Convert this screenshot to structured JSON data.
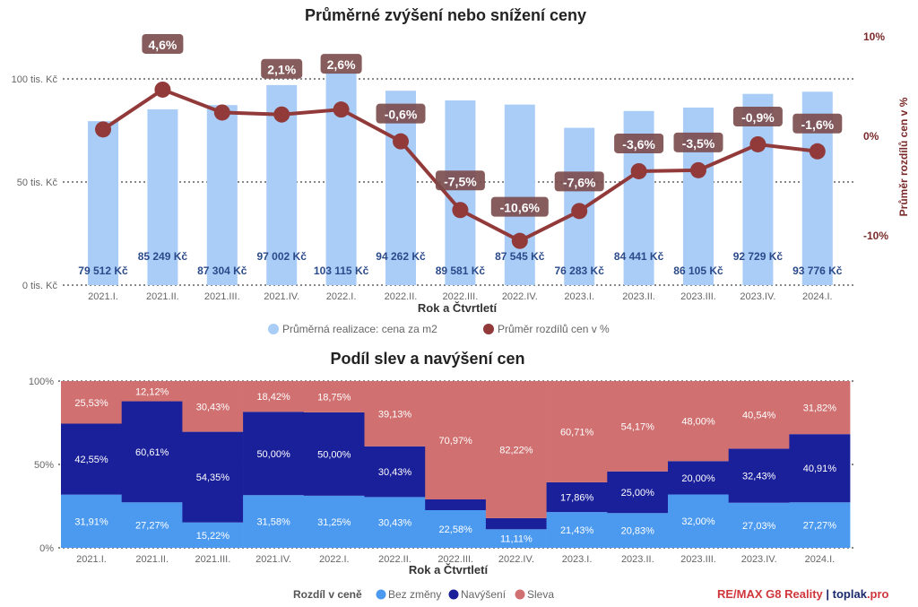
{
  "chart_data": [
    {
      "type": "bar+line",
      "title": "Průměrné zvýšení nebo snížení ceny",
      "xlabel": "Rok a Čtvrtletí",
      "ylabel": "",
      "y2label": "Průměr rozdílů cen v %",
      "categories": [
        "2021.I.",
        "2021.II.",
        "2021.III.",
        "2021.IV.",
        "2022.I.",
        "2022.II.",
        "2022.III.",
        "2022.IV.",
        "2023.I.",
        "2023.II.",
        "2023.III.",
        "2023.IV.",
        "2024.I."
      ],
      "yticks": [
        "0 tis. Kč",
        "50 tis. Kč",
        "100 tis. Kč"
      ],
      "y2ticks": [
        "-10%",
        "0%",
        "10%"
      ],
      "grid": true,
      "legend_position": "bottom",
      "series": [
        {
          "name": "Průměrná realizace: cena za m2",
          "type": "bar",
          "color": "#a9cdf7",
          "values": [
            79512,
            85249,
            87304,
            97002,
            103115,
            94262,
            89581,
            87545,
            76283,
            84441,
            86105,
            92729,
            93776
          ],
          "labels": [
            "79 512 Kč",
            "85 249 Kč",
            "87 304 Kč",
            "97 002 Kč",
            "103 115 Kč",
            "94 262 Kč",
            "89 581 Kč",
            "87 545 Kč",
            "76 283 Kč",
            "84 441 Kč",
            "86 105 Kč",
            "92 729 Kč",
            "93 776 Kč"
          ]
        },
        {
          "name": "Průměr rozdílů cen v %",
          "type": "line",
          "axis": "right",
          "color": "#923a3a",
          "values": [
            0.6,
            4.6,
            2.3,
            2.1,
            2.6,
            -0.6,
            -7.5,
            -10.6,
            -7.6,
            -3.6,
            -3.5,
            -0.9,
            -1.6
          ],
          "labels": [
            null,
            "4,6%",
            null,
            "2,1%",
            "2,6%",
            "-0,6%",
            "-7,5%",
            "-10,6%",
            "-7,6%",
            "-3,6%",
            "-3,5%",
            "-0,9%",
            "-1,6%"
          ]
        }
      ]
    },
    {
      "type": "stacked-bar-100",
      "title": "Podíl slev a navýšení cen",
      "xlabel": "Rok a Čtvrtletí",
      "legend_title": "Rozdíl v ceně",
      "legend_position": "bottom",
      "yticks": [
        "0%",
        "50%",
        "100%"
      ],
      "categories": [
        "2021.I.",
        "2021.II.",
        "2021.III.",
        "2021.IV.",
        "2022.I.",
        "2022.II.",
        "2022.III.",
        "2022.IV.",
        "2023.I.",
        "2023.II.",
        "2023.III.",
        "2023.IV.",
        "2024.I."
      ],
      "series": [
        {
          "name": "Bez změny",
          "color": "#4b9af0",
          "values": [
            31.91,
            27.27,
            15.22,
            31.58,
            31.25,
            30.43,
            22.58,
            11.11,
            21.43,
            20.83,
            32.0,
            27.03,
            27.27
          ]
        },
        {
          "name": "Navýšení",
          "color": "#1a1f9a",
          "values": [
            42.55,
            60.61,
            54.35,
            50.0,
            50.0,
            30.43,
            6.45,
            6.67,
            17.86,
            25.0,
            20.0,
            32.43,
            40.91
          ]
        },
        {
          "name": "Sleva",
          "color": "#d07070",
          "values": [
            25.53,
            12.12,
            30.43,
            18.42,
            18.75,
            39.13,
            70.97,
            82.22,
            60.71,
            54.17,
            48.0,
            40.54,
            31.82
          ]
        }
      ]
    }
  ],
  "footer": {
    "brand1": "RE/",
    "brand2": "MAX G8 Reality",
    "sep": " | ",
    "site1": "toplak",
    "site2": ".pro"
  }
}
